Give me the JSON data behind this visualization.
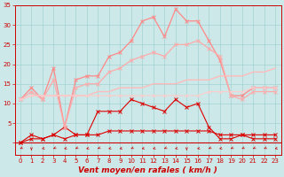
{
  "x": [
    0,
    1,
    2,
    3,
    4,
    5,
    6,
    7,
    8,
    9,
    10,
    11,
    12,
    13,
    14,
    15,
    16,
    17,
    18,
    19,
    20,
    21,
    22,
    23
  ],
  "series": [
    {
      "name": "dark_red_main",
      "color": "#dd0000",
      "linewidth": 0.8,
      "marker": "x",
      "markersize": 2.5,
      "values": [
        0,
        2,
        1,
        2,
        4,
        2,
        2,
        8,
        8,
        8,
        11,
        10,
        9,
        8,
        11,
        9,
        10,
        4,
        1,
        1,
        2,
        1,
        1,
        1
      ]
    },
    {
      "name": "dark_red_flat",
      "color": "#dd0000",
      "linewidth": 0.8,
      "marker": "x",
      "markersize": 2.5,
      "values": [
        0,
        1,
        1,
        2,
        1,
        2,
        2,
        2,
        3,
        3,
        3,
        3,
        3,
        3,
        3,
        3,
        3,
        3,
        2,
        2,
        2,
        2,
        2,
        2
      ]
    },
    {
      "name": "salmon_upper",
      "color": "#ff8888",
      "linewidth": 0.9,
      "marker": "x",
      "markersize": 2.5,
      "values": [
        11,
        14,
        11,
        19,
        4,
        16,
        17,
        17,
        22,
        23,
        26,
        31,
        32,
        27,
        34,
        31,
        31,
        26,
        21,
        12,
        12,
        14,
        14,
        14
      ]
    },
    {
      "name": "salmon_mid",
      "color": "#ffaaaa",
      "linewidth": 0.9,
      "marker": "x",
      "markersize": 2.5,
      "values": [
        11,
        13,
        11,
        16,
        4,
        14,
        15,
        15,
        18,
        19,
        21,
        22,
        23,
        22,
        25,
        25,
        26,
        24,
        22,
        12,
        11,
        13,
        13,
        13
      ]
    },
    {
      "name": "light_salmon_diagonal",
      "color": "#ffbbbb",
      "linewidth": 1.0,
      "marker": null,
      "markersize": 0,
      "values": [
        11,
        12,
        12,
        12,
        12,
        12,
        12,
        13,
        13,
        14,
        14,
        14,
        15,
        15,
        15,
        16,
        16,
        16,
        17,
        17,
        17,
        18,
        18,
        19
      ]
    },
    {
      "name": "pink_flat",
      "color": "#ffcccc",
      "linewidth": 0.8,
      "marker": "x",
      "markersize": 2.0,
      "values": [
        11,
        12,
        12,
        12,
        12,
        12,
        12,
        12,
        12,
        12,
        12,
        12,
        12,
        12,
        12,
        12,
        12,
        13,
        13,
        13,
        13,
        14,
        14,
        14
      ]
    }
  ],
  "arrow_angles": [
    225,
    270,
    210,
    225,
    210,
    225,
    210,
    225,
    210,
    210,
    225,
    210,
    210,
    225,
    210,
    270,
    210,
    225,
    210,
    225,
    225,
    225,
    225,
    210
  ],
  "xlim": [
    -0.5,
    23.5
  ],
  "ylim": [
    0,
    35
  ],
  "yticks": [
    0,
    5,
    10,
    15,
    20,
    25,
    30,
    35
  ],
  "xticks": [
    0,
    1,
    2,
    3,
    4,
    5,
    6,
    7,
    8,
    9,
    10,
    11,
    12,
    13,
    14,
    15,
    16,
    17,
    18,
    19,
    20,
    21,
    22,
    23
  ],
  "xlabel": "Vent moyen/en rafales ( km/h )",
  "xlabel_color": "#cc0000",
  "xlabel_fontsize": 6.5,
  "tick_color": "#cc0000",
  "tick_fontsize": 5.0,
  "grid_color": "#99cccc",
  "grid_alpha": 0.8,
  "background_color": "#cce8e8",
  "fig_bg": "#cce8e8",
  "arrow_color": "#cc0000",
  "spine_color": "#cc0000"
}
